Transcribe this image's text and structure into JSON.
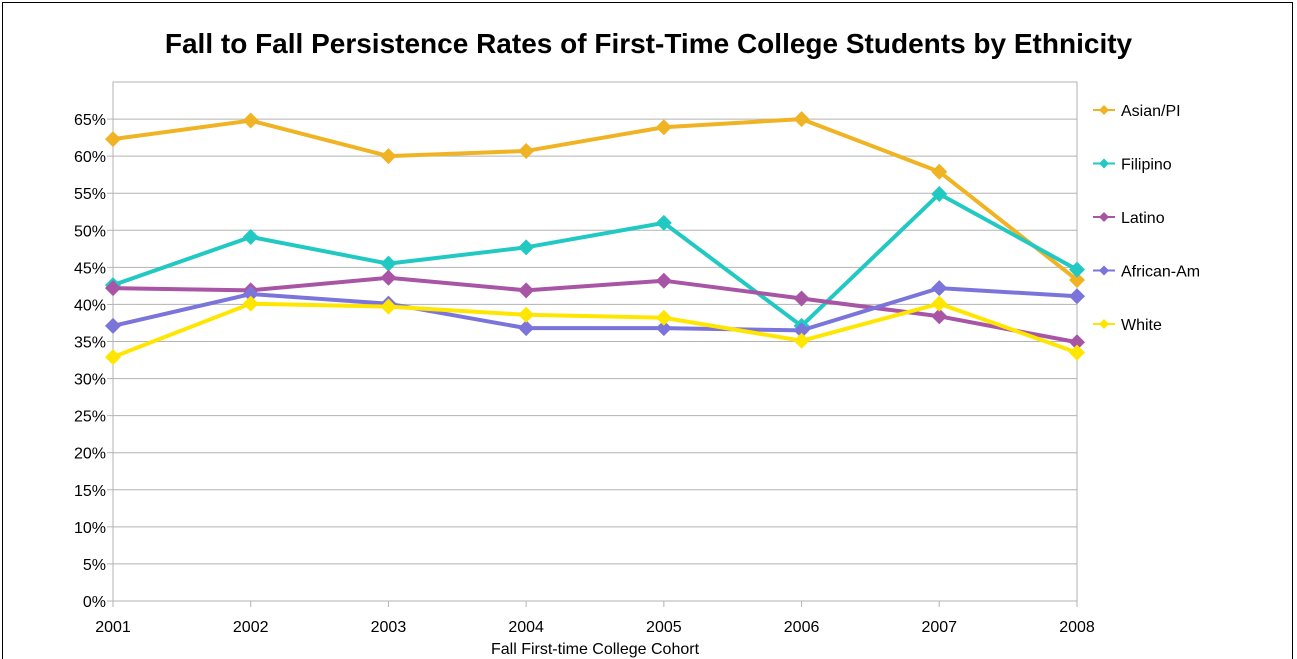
{
  "chart_data": {
    "type": "line",
    "title": "Fall to Fall Persistence Rates of First-Time College Students by Ethnicity",
    "xlabel": "Fall First-time College Cohort",
    "ylabel": "",
    "categories": [
      "2001",
      "2002",
      "2003",
      "2004",
      "2005",
      "2006",
      "2007",
      "2008"
    ],
    "ylim": [
      0,
      0.7
    ],
    "yticks": [
      0,
      0.05,
      0.1,
      0.15,
      0.2,
      0.25,
      0.3,
      0.35,
      0.4,
      0.45,
      0.5,
      0.55,
      0.6,
      0.65
    ],
    "ytick_labels": [
      "0%",
      "5%",
      "10%",
      "15%",
      "20%",
      "25%",
      "30%",
      "35%",
      "40%",
      "45%",
      "50%",
      "55%",
      "60%",
      "65%"
    ],
    "grid": true,
    "legend_position": "right",
    "series": [
      {
        "name": "Asian/PI",
        "color": "#F0B323",
        "values": [
          0.623,
          0.648,
          0.6,
          0.607,
          0.639,
          0.65,
          0.579,
          0.433
        ]
      },
      {
        "name": "Filipino",
        "color": "#22C9C3",
        "values": [
          0.426,
          0.491,
          0.455,
          0.477,
          0.51,
          0.371,
          0.549,
          0.447
        ]
      },
      {
        "name": "Latino",
        "color": "#A855A5",
        "values": [
          0.422,
          0.419,
          0.436,
          0.419,
          0.432,
          0.408,
          0.384,
          0.349
        ]
      },
      {
        "name": "African-Am",
        "color": "#7B74DB",
        "values": [
          0.371,
          0.414,
          0.401,
          0.368,
          0.368,
          0.365,
          0.422,
          0.411
        ]
      },
      {
        "name": "White",
        "color": "#FFE600",
        "values": [
          0.329,
          0.401,
          0.397,
          0.386,
          0.382,
          0.351,
          0.401,
          0.335
        ]
      }
    ]
  }
}
